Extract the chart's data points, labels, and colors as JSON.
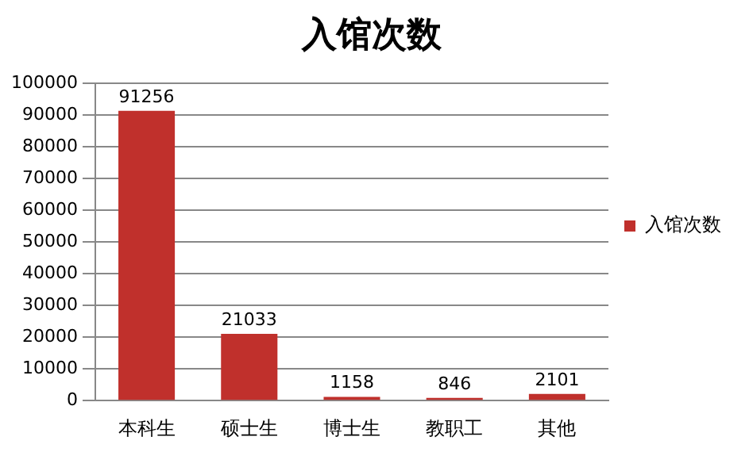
{
  "chart_data": {
    "type": "bar",
    "title": "入馆次数",
    "categories": [
      "本科生",
      "硕士生",
      "博士生",
      "教职工",
      "其他"
    ],
    "series": [
      {
        "name": "入馆次数",
        "color": "#c0302c",
        "values": [
          91256,
          21033,
          1158,
          846,
          2101
        ]
      }
    ],
    "ylim": [
      0,
      100000
    ],
    "yticks": [
      0,
      10000,
      20000,
      30000,
      40000,
      50000,
      60000,
      70000,
      80000,
      90000,
      100000
    ],
    "grid": "y",
    "legend": "right",
    "data_labels": true
  }
}
